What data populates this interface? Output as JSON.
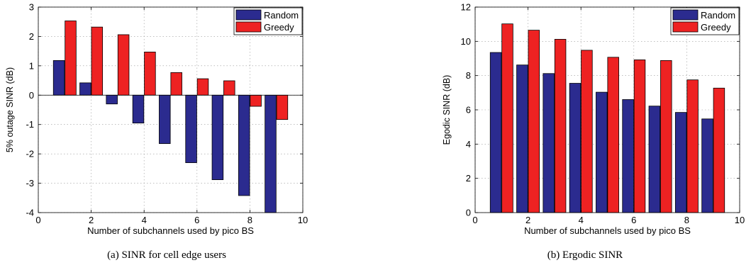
{
  "chart_data": [
    {
      "type": "bar",
      "x": [
        1,
        2,
        3,
        4,
        5,
        6,
        7,
        8,
        9
      ],
      "series": [
        {
          "name": "Random",
          "color": "#2b2b8f",
          "values": [
            1.18,
            0.42,
            -0.3,
            -0.95,
            -1.65,
            -2.3,
            -2.88,
            -3.42,
            -4.0
          ]
        },
        {
          "name": "Greedy",
          "color": "#ee2222",
          "values": [
            2.53,
            2.32,
            2.06,
            1.47,
            0.77,
            0.56,
            0.49,
            -0.38,
            -0.83
          ]
        }
      ],
      "title": "",
      "xlabel": "Number of subchannels used by pico BS",
      "ylabel": "5% outage SINR (dB)",
      "xlim": [
        0,
        10
      ],
      "ylim": [
        -4,
        3
      ],
      "xticks": [
        "0",
        "2",
        "4",
        "6",
        "8",
        "10"
      ],
      "yticks": [
        "-4",
        "-3",
        "-2",
        "-1",
        "0",
        "1",
        "2",
        "3"
      ],
      "grid": true,
      "legend_position": "top-right",
      "caption": "(a) SINR for cell edge users"
    },
    {
      "type": "bar",
      "x": [
        1,
        2,
        3,
        4,
        5,
        6,
        7,
        8,
        9
      ],
      "series": [
        {
          "name": "Random",
          "color": "#2b2b8f",
          "values": [
            9.35,
            8.62,
            8.12,
            7.55,
            7.03,
            6.6,
            6.22,
            5.85,
            5.47
          ]
        },
        {
          "name": "Greedy",
          "color": "#ee2222",
          "values": [
            11.02,
            10.65,
            10.12,
            9.48,
            9.07,
            8.92,
            8.88,
            7.75,
            7.27
          ]
        }
      ],
      "title": "",
      "xlabel": "Number of subchannels used by pico BS",
      "ylabel": "Egodic SINR (dB)",
      "xlim": [
        0,
        10
      ],
      "ylim": [
        0,
        12
      ],
      "xticks": [
        "0",
        "2",
        "4",
        "6",
        "8",
        "10"
      ],
      "yticks": [
        "0",
        "2",
        "4",
        "6",
        "8",
        "10",
        "12"
      ],
      "grid": true,
      "legend_position": "top-right",
      "caption": "(b) Ergodic SINR"
    }
  ]
}
